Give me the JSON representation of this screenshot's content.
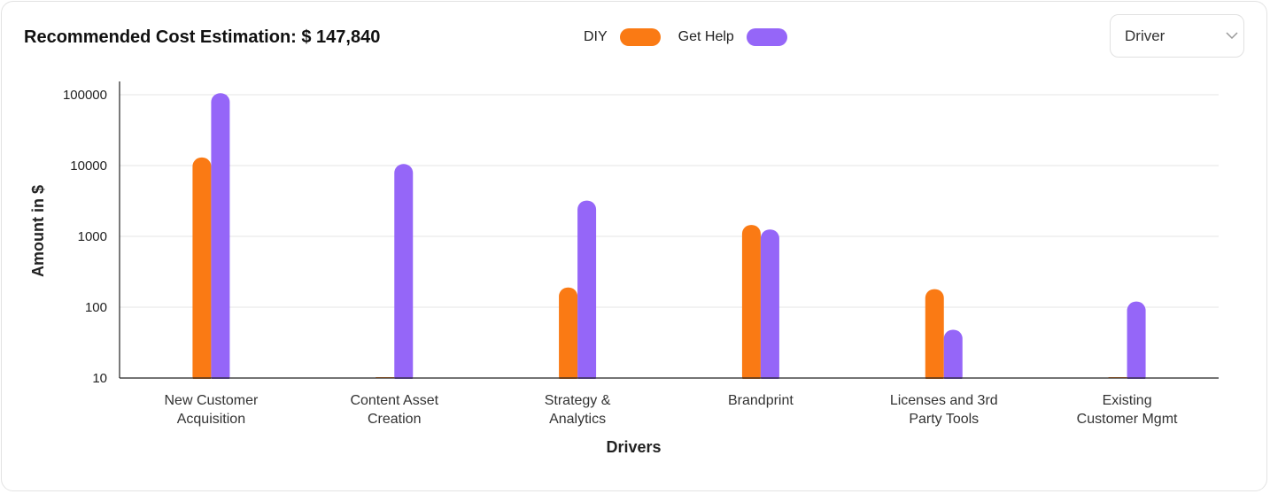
{
  "header": {
    "title": "Recommended Cost Estimation: $ 147,840"
  },
  "dropdown": {
    "selected": "Driver",
    "icon": "chevron-down-icon"
  },
  "colors": {
    "diy": "#fa7a14",
    "get_help": "#9566f8",
    "grid": "#e6e6e6",
    "axis": "#222222"
  },
  "chart_data": {
    "type": "bar",
    "title": "",
    "xlabel": "Drivers",
    "ylabel": "Amount in $",
    "yscale": "log",
    "ylim": [
      10,
      100000
    ],
    "yticks": [
      "10",
      "100",
      "1000",
      "10000",
      "100000"
    ],
    "grid": true,
    "legend": "top-center",
    "categories": [
      [
        "New Customer",
        "Acquisition"
      ],
      [
        "Content Asset",
        "Creation"
      ],
      [
        "Strategy &",
        "Analytics"
      ],
      [
        "Brandprint"
      ],
      [
        "Licenses and 3rd",
        "Party Tools"
      ],
      [
        "Existing",
        "Customer Mgmt"
      ]
    ],
    "series": [
      {
        "name": "DIY",
        "values": [
          13000,
          0,
          190,
          1450,
          180,
          0
        ]
      },
      {
        "name": "Get Help",
        "values": [
          105000,
          10500,
          3200,
          1250,
          48,
          120
        ]
      }
    ]
  }
}
